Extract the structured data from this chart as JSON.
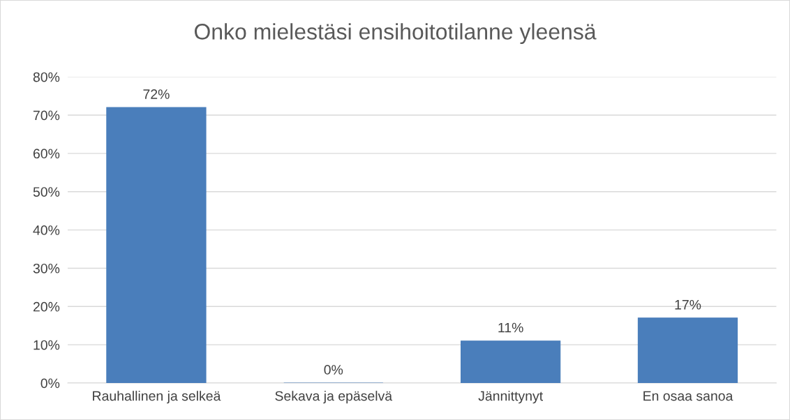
{
  "chart_data": {
    "type": "bar",
    "title": "Onko mielestäsi ensihoitotilanne yleensä",
    "categories": [
      "Rauhallinen ja selkeä",
      "Sekava ja epäselvä",
      "Jännittynyt",
      "En osaa sanoa"
    ],
    "values": [
      72,
      0,
      11,
      17
    ],
    "value_labels": [
      "72%",
      "0%",
      "11%",
      "17%"
    ],
    "color": "#4a7ebb",
    "ylim": [
      0,
      80
    ],
    "yticks": [
      {
        "value": 0,
        "label": "0%"
      },
      {
        "value": 10,
        "label": "10%"
      },
      {
        "value": 20,
        "label": "20%"
      },
      {
        "value": 30,
        "label": "30%"
      },
      {
        "value": 40,
        "label": "40%"
      },
      {
        "value": 50,
        "label": "50%"
      },
      {
        "value": 60,
        "label": "60%"
      },
      {
        "value": 70,
        "label": "70%"
      },
      {
        "value": 80,
        "label": "80%"
      }
    ],
    "grid": "y"
  }
}
